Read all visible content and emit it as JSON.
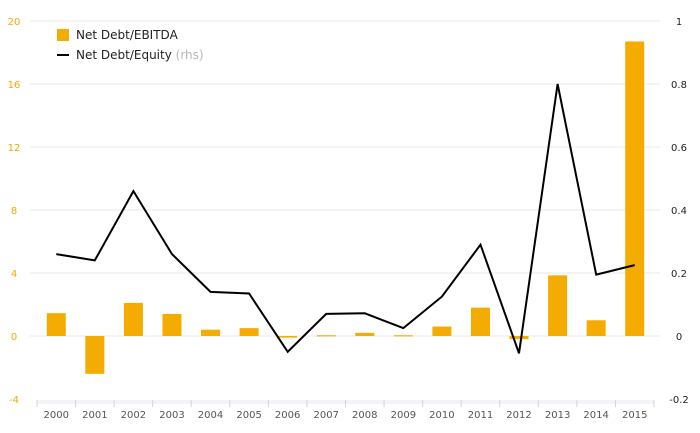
{
  "chart_data": {
    "type": "bar",
    "categories": [
      "2000",
      "2001",
      "2002",
      "2003",
      "2004",
      "2005",
      "2006",
      "2007",
      "2008",
      "2009",
      "2010",
      "2011",
      "2012",
      "2013",
      "2014",
      "2015"
    ],
    "series": [
      {
        "name": "Net Debt/EBITDA",
        "type": "bar",
        "axis": "left",
        "color": "#f5ac00",
        "values": [
          1.45,
          -2.4,
          2.1,
          1.4,
          0.4,
          0.5,
          -0.1,
          0.05,
          0.2,
          0.05,
          0.6,
          1.8,
          -0.2,
          3.85,
          1.0,
          18.7
        ]
      },
      {
        "name": "Net Debt/Equity",
        "type": "line",
        "axis": "right",
        "color": "#000000",
        "values": [
          0.26,
          0.24,
          0.46,
          0.26,
          0.14,
          0.135,
          -0.05,
          0.07,
          0.072,
          0.025,
          0.125,
          0.29,
          -0.055,
          0.8,
          0.195,
          0.225
        ]
      }
    ],
    "legend": {
      "items": [
        {
          "label": "Net Debt/EBITDA",
          "suffix": ""
        },
        {
          "label": "Net Debt/Equity",
          "suffix": "(rhs)"
        }
      ],
      "position": "top-left"
    },
    "y_left": {
      "ylim": [
        -4,
        20
      ],
      "ticks": [
        -4,
        0,
        4,
        8,
        12,
        16,
        20
      ],
      "tick_labels": [
        "-4",
        "0",
        "4",
        "8",
        "12",
        "16",
        "20"
      ]
    },
    "y_right": {
      "ylim": [
        -0.2,
        1
      ],
      "ticks": [
        -0.2,
        0,
        0.2,
        0.4,
        0.6,
        0.8,
        1
      ],
      "tick_labels": [
        "-0.2",
        "0",
        "0.2",
        "0.4",
        "0.6",
        "0.8",
        "1"
      ]
    },
    "grid": true,
    "colors": {
      "bar": "#f5ac00",
      "line": "#000000",
      "left_tick": "#f5a800",
      "grid": "#e9e9e9",
      "x_band": "#f4f4f8"
    }
  }
}
